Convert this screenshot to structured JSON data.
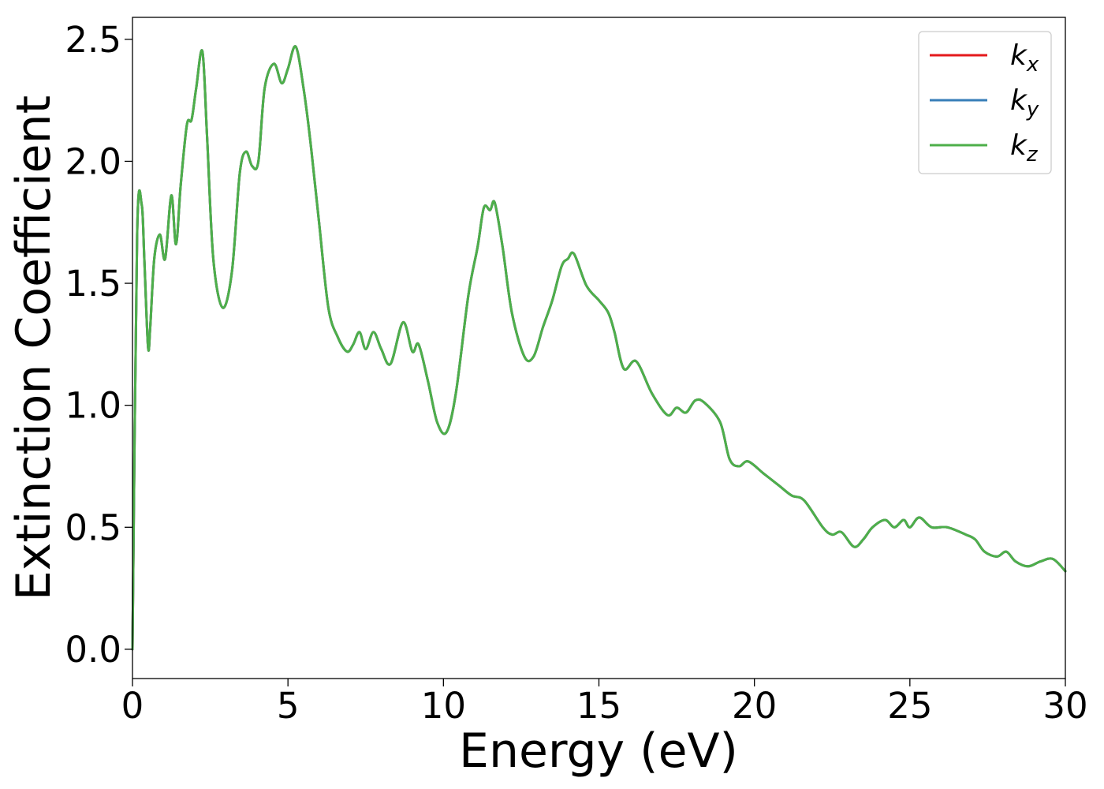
{
  "chart_data": {
    "type": "line",
    "title": "",
    "xlabel": "Energy (eV)",
    "ylabel": "Extinction Coefficient",
    "xlim": [
      0,
      30
    ],
    "ylim": [
      -0.12,
      2.59
    ],
    "xticks": [
      0,
      5,
      10,
      15,
      20,
      25,
      30
    ],
    "xtick_labels": [
      "0",
      "5",
      "10",
      "15",
      "20",
      "25",
      "30"
    ],
    "yticks": [
      0.0,
      0.5,
      1.0,
      1.5,
      2.0,
      2.5
    ],
    "ytick_labels": [
      "0.0",
      "0.5",
      "1.0",
      "1.5",
      "2.0",
      "2.5"
    ],
    "grid": false,
    "legend_position": "top-right",
    "x": [
      0,
      0.15,
      0.3,
      0.38,
      0.5,
      0.57,
      0.7,
      0.88,
      1.05,
      1.25,
      1.4,
      1.55,
      1.75,
      1.9,
      2.05,
      2.25,
      2.4,
      2.6,
      2.9,
      3.2,
      3.45,
      3.65,
      3.85,
      4.05,
      4.25,
      4.55,
      4.8,
      5.0,
      5.25,
      5.5,
      5.75,
      6.0,
      6.3,
      6.6,
      6.9,
      7.1,
      7.3,
      7.5,
      7.75,
      8.0,
      8.3,
      8.7,
      9.0,
      9.2,
      9.5,
      9.8,
      10.1,
      10.4,
      10.8,
      11.1,
      11.3,
      11.5,
      11.65,
      11.9,
      12.2,
      12.6,
      12.9,
      13.2,
      13.5,
      13.8,
      14.0,
      14.2,
      14.6,
      15.0,
      15.3,
      15.5,
      15.8,
      16.2,
      16.7,
      17.2,
      17.5,
      17.8,
      18.1,
      18.4,
      18.9,
      19.2,
      19.5,
      19.8,
      20.3,
      20.8,
      21.2,
      21.6,
      22.2,
      22.5,
      22.8,
      23.2,
      23.5,
      23.8,
      24.2,
      24.5,
      24.8,
      25.0,
      25.3,
      25.7,
      26.2,
      26.8,
      27.1,
      27.4,
      27.8,
      28.1,
      28.4,
      28.8,
      29.2,
      29.6,
      30.0
    ],
    "series": [
      {
        "name": "kx",
        "color": "#e41a1c",
        "values": [
          0.0,
          1.7,
          1.82,
          1.6,
          1.24,
          1.32,
          1.6,
          1.7,
          1.6,
          1.86,
          1.66,
          1.9,
          2.15,
          2.17,
          2.3,
          2.45,
          2.1,
          1.6,
          1.4,
          1.55,
          1.95,
          2.04,
          1.98,
          2.0,
          2.3,
          2.4,
          2.32,
          2.38,
          2.47,
          2.3,
          2.05,
          1.75,
          1.4,
          1.28,
          1.22,
          1.25,
          1.3,
          1.23,
          1.3,
          1.23,
          1.17,
          1.34,
          1.22,
          1.25,
          1.1,
          0.93,
          0.89,
          1.05,
          1.45,
          1.65,
          1.81,
          1.8,
          1.83,
          1.65,
          1.38,
          1.2,
          1.2,
          1.32,
          1.43,
          1.57,
          1.6,
          1.62,
          1.49,
          1.43,
          1.38,
          1.3,
          1.15,
          1.18,
          1.05,
          0.96,
          0.99,
          0.97,
          1.02,
          1.01,
          0.93,
          0.78,
          0.75,
          0.77,
          0.72,
          0.67,
          0.63,
          0.61,
          0.5,
          0.47,
          0.48,
          0.42,
          0.45,
          0.5,
          0.53,
          0.5,
          0.53,
          0.5,
          0.54,
          0.5,
          0.5,
          0.47,
          0.45,
          0.4,
          0.38,
          0.4,
          0.36,
          0.34,
          0.36,
          0.37,
          0.32
        ]
      },
      {
        "name": "ky",
        "color": "#377eb8",
        "values": [
          0.0,
          1.7,
          1.82,
          1.6,
          1.24,
          1.32,
          1.6,
          1.7,
          1.6,
          1.86,
          1.66,
          1.9,
          2.15,
          2.17,
          2.3,
          2.45,
          2.1,
          1.6,
          1.4,
          1.55,
          1.95,
          2.04,
          1.98,
          2.0,
          2.3,
          2.4,
          2.32,
          2.38,
          2.47,
          2.3,
          2.05,
          1.75,
          1.4,
          1.28,
          1.22,
          1.25,
          1.3,
          1.23,
          1.3,
          1.23,
          1.17,
          1.34,
          1.22,
          1.25,
          1.1,
          0.93,
          0.89,
          1.05,
          1.45,
          1.65,
          1.81,
          1.8,
          1.83,
          1.65,
          1.38,
          1.2,
          1.2,
          1.32,
          1.43,
          1.57,
          1.6,
          1.62,
          1.49,
          1.43,
          1.38,
          1.3,
          1.15,
          1.18,
          1.05,
          0.96,
          0.99,
          0.97,
          1.02,
          1.01,
          0.93,
          0.78,
          0.75,
          0.77,
          0.72,
          0.67,
          0.63,
          0.61,
          0.5,
          0.47,
          0.48,
          0.42,
          0.45,
          0.5,
          0.53,
          0.5,
          0.53,
          0.5,
          0.54,
          0.5,
          0.5,
          0.47,
          0.45,
          0.4,
          0.38,
          0.4,
          0.36,
          0.34,
          0.36,
          0.37,
          0.32
        ]
      },
      {
        "name": "kz",
        "color": "#4daf4a",
        "values": [
          0.0,
          1.7,
          1.82,
          1.6,
          1.24,
          1.32,
          1.6,
          1.7,
          1.6,
          1.86,
          1.66,
          1.9,
          2.15,
          2.17,
          2.3,
          2.45,
          2.1,
          1.6,
          1.4,
          1.55,
          1.95,
          2.04,
          1.98,
          2.0,
          2.3,
          2.4,
          2.32,
          2.38,
          2.47,
          2.3,
          2.05,
          1.75,
          1.4,
          1.28,
          1.22,
          1.25,
          1.3,
          1.23,
          1.3,
          1.23,
          1.17,
          1.34,
          1.22,
          1.25,
          1.1,
          0.93,
          0.89,
          1.05,
          1.45,
          1.65,
          1.81,
          1.8,
          1.83,
          1.65,
          1.38,
          1.2,
          1.2,
          1.32,
          1.43,
          1.57,
          1.6,
          1.62,
          1.49,
          1.43,
          1.38,
          1.3,
          1.15,
          1.18,
          1.05,
          0.96,
          0.99,
          0.97,
          1.02,
          1.01,
          0.93,
          0.78,
          0.75,
          0.77,
          0.72,
          0.67,
          0.63,
          0.61,
          0.5,
          0.47,
          0.48,
          0.42,
          0.45,
          0.5,
          0.53,
          0.5,
          0.53,
          0.5,
          0.54,
          0.5,
          0.5,
          0.47,
          0.45,
          0.4,
          0.38,
          0.4,
          0.36,
          0.34,
          0.36,
          0.37,
          0.32
        ]
      }
    ],
    "legend": [
      {
        "base": "k",
        "sub": "x"
      },
      {
        "base": "k",
        "sub": "y"
      },
      {
        "base": "k",
        "sub": "z"
      }
    ]
  }
}
